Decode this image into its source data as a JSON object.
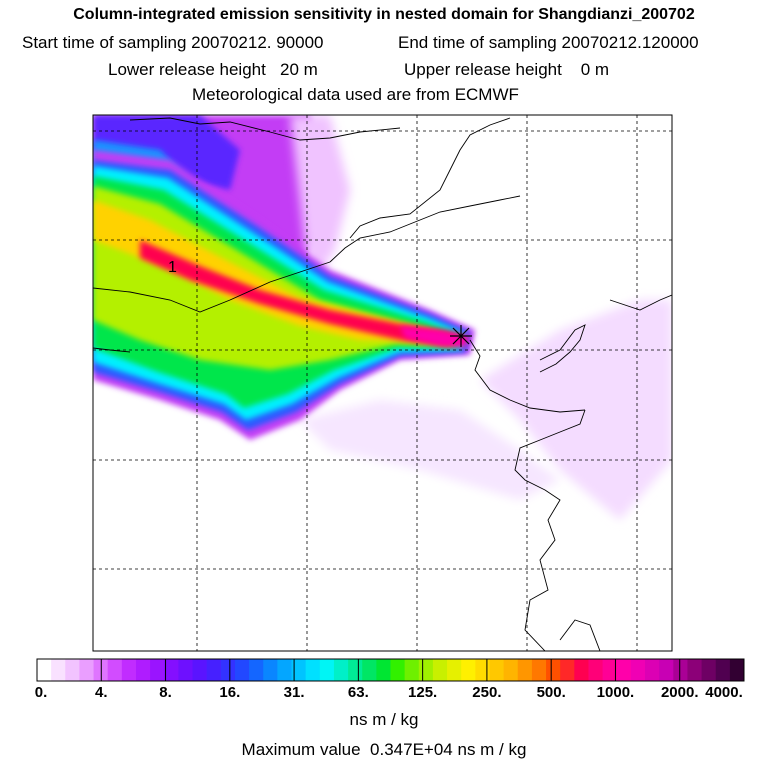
{
  "header": {
    "title": "Column-integrated emission sensitivity in nested domain for Shangdianzi_200702",
    "start_label": "Start time of sampling",
    "start_value": "20070212. 90000",
    "end_label": "End time of sampling",
    "end_value": "20070212.120000",
    "lower_label": "Lower release height",
    "lower_value": "20 m",
    "upper_label": "Upper release height",
    "upper_value": "0 m",
    "met_line": "Meteorological data used are from ECMWF"
  },
  "map": {
    "contour_label": "1",
    "plume_colors": [
      "#e6e6ff",
      "#c33cf5",
      "#5a28ff",
      "#1496ff",
      "#00f0ff",
      "#00e64b",
      "#b4f000",
      "#ffd200",
      "#ff0050",
      "#ff00aa"
    ]
  },
  "colorbar": {
    "tick_labels": [
      "0.",
      "4.",
      "8.",
      "16.",
      "31.",
      "63.",
      "125.",
      "250.",
      "500.",
      "1000.",
      "2000.",
      "4000."
    ],
    "colors": [
      "#ffffff",
      "#f9e1ff",
      "#f2c3ff",
      "#ea9eff",
      "#df75ff",
      "#d24cff",
      "#c12cff",
      "#af1cff",
      "#9a14ff",
      "#840fff",
      "#6e10ff",
      "#5a14ff",
      "#4620ff",
      "#3332ff",
      "#2248ff",
      "#1466ff",
      "#0a86ff",
      "#04a6ff",
      "#00c4ff",
      "#00e0ff",
      "#00f5f5",
      "#00f0c8",
      "#00eb96",
      "#00e664",
      "#00e632",
      "#32f000",
      "#6ef000",
      "#a0f000",
      "#c8f000",
      "#e6f000",
      "#fff000",
      "#ffdc00",
      "#ffc800",
      "#ffb400",
      "#ff9600",
      "#ff7800",
      "#ff5000",
      "#ff2828",
      "#ff0050",
      "#ff0078",
      "#ff0096",
      "#ff00aa",
      "#f000b4",
      "#dc00b4",
      "#c800b4",
      "#aa0096",
      "#8c0078",
      "#6e0064",
      "#500050",
      "#320032"
    ],
    "units": "ns m / kg",
    "max_label": "Maximum value",
    "max_value": "0.347E+04 ns m / kg"
  }
}
